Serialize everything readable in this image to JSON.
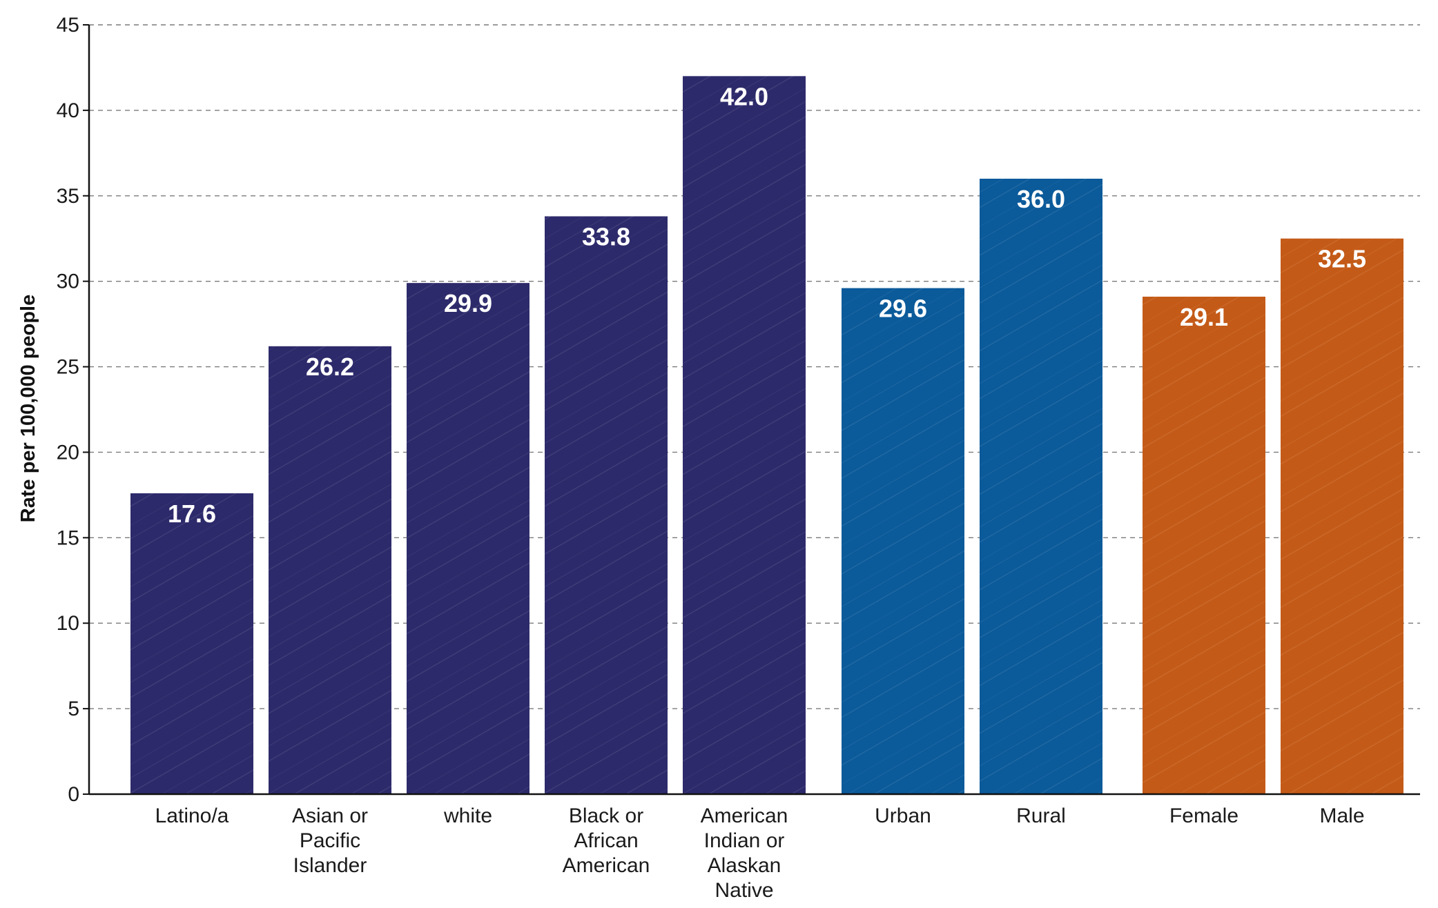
{
  "chart_data": {
    "type": "bar",
    "title": "",
    "xlabel": "",
    "ylabel": "Rate per 100,000 people",
    "ylim": [
      0,
      45
    ],
    "yticks": [
      0,
      5,
      10,
      15,
      20,
      25,
      30,
      35,
      40,
      45
    ],
    "grid": true,
    "categories": [
      {
        "label_lines": [
          "Latino/a"
        ],
        "value": 17.6,
        "value_label": "17.6",
        "group": "race"
      },
      {
        "label_lines": [
          "Asian or",
          "Pacific",
          "Islander"
        ],
        "value": 26.2,
        "value_label": "26.2",
        "group": "race"
      },
      {
        "label_lines": [
          "white"
        ],
        "value": 29.9,
        "value_label": "29.9",
        "group": "race"
      },
      {
        "label_lines": [
          "Black or",
          "African",
          "American"
        ],
        "value": 33.8,
        "value_label": "33.8",
        "group": "race"
      },
      {
        "label_lines": [
          "American",
          "Indian or",
          "Alaskan",
          "Native"
        ],
        "value": 42.0,
        "value_label": "42.0",
        "group": "race"
      },
      {
        "label_lines": [
          "Urban"
        ],
        "value": 29.6,
        "value_label": "29.6",
        "group": "geography"
      },
      {
        "label_lines": [
          "Rural"
        ],
        "value": 36.0,
        "value_label": "36.0",
        "group": "geography"
      },
      {
        "label_lines": [
          "Female"
        ],
        "value": 29.1,
        "value_label": "29.1",
        "group": "sex"
      },
      {
        "label_lines": [
          "Male"
        ],
        "value": 32.5,
        "value_label": "32.5",
        "group": "sex"
      }
    ],
    "group_colors": {
      "race": "#2d2a6b",
      "geography": "#0b5a9a",
      "sex": "#c45a17"
    }
  }
}
